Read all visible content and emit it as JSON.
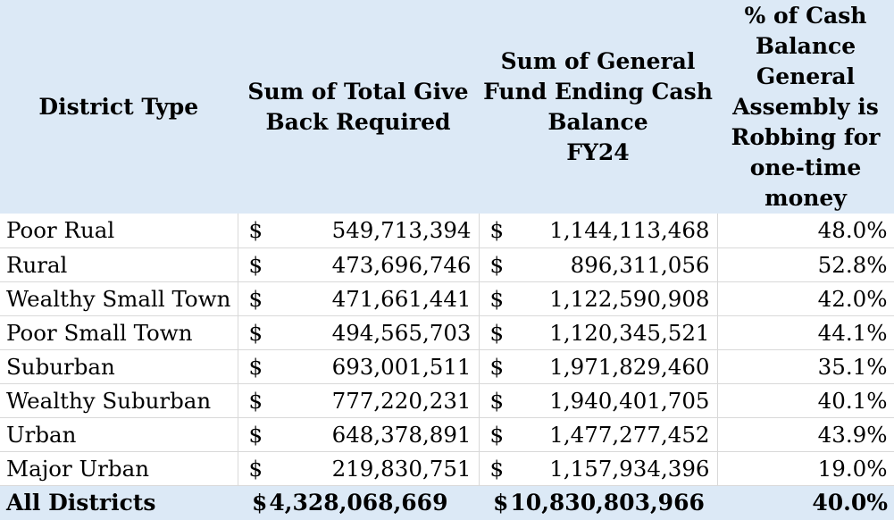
{
  "header": {
    "col1": "District Type",
    "col2": "Sum of Total Give Back Required",
    "col3_line1": "Sum of General Fund Ending Cash Balance",
    "col3_line2": "FY24",
    "col4": "% of Cash Balance General Assembly is Robbing for one-time money"
  },
  "currency_symbol": "$",
  "rows": [
    {
      "district": "Poor Rual",
      "give_back": "549,713,394",
      "cash_balance": "1,144,113,468",
      "pct": "48.0%"
    },
    {
      "district": "Rural",
      "give_back": "473,696,746",
      "cash_balance": "896,311,056",
      "pct": "52.8%"
    },
    {
      "district": "Wealthy Small Town",
      "give_back": "471,661,441",
      "cash_balance": "1,122,590,908",
      "pct": "42.0%"
    },
    {
      "district": "Poor Small Town",
      "give_back": "494,565,703",
      "cash_balance": "1,120,345,521",
      "pct": "44.1%"
    },
    {
      "district": "Suburban",
      "give_back": "693,001,511",
      "cash_balance": "1,971,829,460",
      "pct": "35.1%"
    },
    {
      "district": "Wealthy Suburban",
      "give_back": "777,220,231",
      "cash_balance": "1,940,401,705",
      "pct": "40.1%"
    },
    {
      "district": "Urban",
      "give_back": "648,378,891",
      "cash_balance": "1,477,277,452",
      "pct": "43.9%"
    },
    {
      "district": "Major Urban",
      "give_back": "219,830,751",
      "cash_balance": "1,157,934,396",
      "pct": "19.0%"
    }
  ],
  "total": {
    "district": "All Districts",
    "give_back": "4,328,068,669",
    "cash_balance": "10,830,803,966",
    "pct": "40.0%"
  },
  "colors": {
    "header_bg": "#dce9f6",
    "grid": "#d9d9d9"
  }
}
